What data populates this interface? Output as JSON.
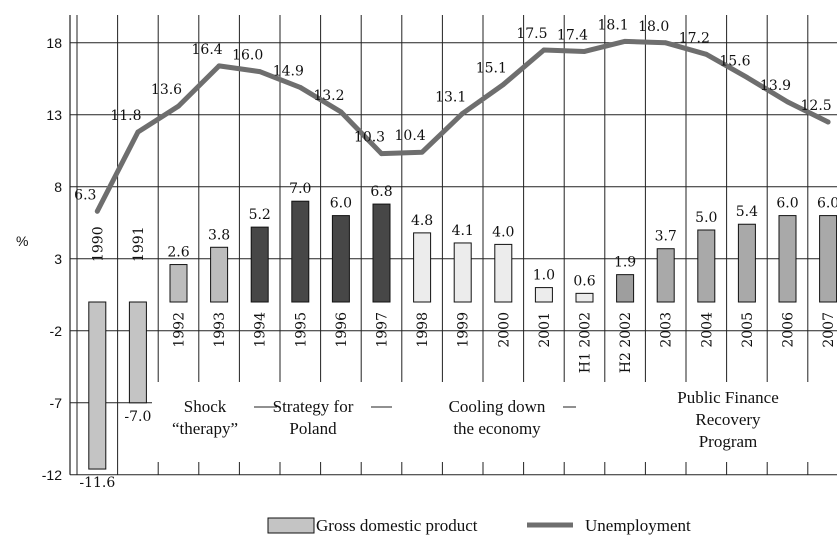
{
  "chart_data": {
    "type": "bar",
    "ylabel": "%",
    "ylim": [
      -12,
      21
    ],
    "yticks": [
      -12,
      -7,
      -2,
      3,
      8,
      13,
      18
    ],
    "categories": [
      "1990",
      "1991",
      "1992",
      "1993",
      "1994",
      "1995",
      "1996",
      "1997",
      "1998",
      "1999",
      "2000",
      "2001",
      "H1 2002",
      "H2 2002",
      "2003",
      "2004",
      "2005",
      "2006",
      "2007"
    ],
    "series": [
      {
        "name": "Gross domestic product",
        "kind": "bar",
        "values": [
          -11.6,
          -7.0,
          2.6,
          3.8,
          5.2,
          7.0,
          6.0,
          6.8,
          4.8,
          4.1,
          4.0,
          1.0,
          0.6,
          1.9,
          3.7,
          5.0,
          5.4,
          6.0,
          6.0
        ],
        "labels": [
          "-11.6",
          "-7.0",
          "2.6",
          "3.8",
          "5.2",
          "7.0",
          "6.0",
          "6.8",
          "4.8",
          "4.1",
          "4.0",
          "1.0",
          "0.6",
          "1.9",
          "3.7",
          "5.0",
          "5.4",
          "6.0",
          "6.0"
        ],
        "fills": [
          "#c4c4c4",
          "#c4c4c4",
          "#bdbdbd",
          "#bdbdbd",
          "#474747",
          "#474747",
          "#474747",
          "#474747",
          "#ececec",
          "#ececec",
          "#ececec",
          "#ececec",
          "#ececec",
          "#9e9e9e",
          "#a9a9a9",
          "#a9a9a9",
          "#a9a9a9",
          "#a9a9a9",
          "#a9a9a9"
        ]
      },
      {
        "name": "Unemployment",
        "kind": "line",
        "color": "#6e6e6e",
        "values": [
          6.3,
          11.8,
          13.6,
          16.4,
          16.0,
          14.9,
          13.2,
          10.3,
          10.4,
          13.1,
          15.1,
          17.5,
          17.4,
          18.1,
          18.0,
          17.2,
          15.6,
          13.9,
          12.5
        ],
        "labels": [
          "6.3",
          "11.8",
          "13.6",
          "16.4",
          "16.0",
          "14.9",
          "13.2",
          "10.3",
          "10.4",
          "13.1",
          "15.1",
          "17.5",
          "17.4",
          "18.1",
          "18.0",
          "17.2",
          "15.6",
          "13.9",
          "12.5"
        ]
      }
    ],
    "periods": [
      {
        "lines": [
          "Shock",
          "“therapy”"
        ]
      },
      {
        "lines": [
          "Strategy for",
          "Poland"
        ]
      },
      {
        "lines": [
          "Cooling down",
          "the economy"
        ]
      },
      {
        "lines": [
          "Public Finance",
          "Recovery",
          "Program"
        ]
      }
    ],
    "legend": {
      "placement": "bottom",
      "items": [
        "Gross domestic product",
        "Unemployment"
      ]
    },
    "grid": true
  }
}
